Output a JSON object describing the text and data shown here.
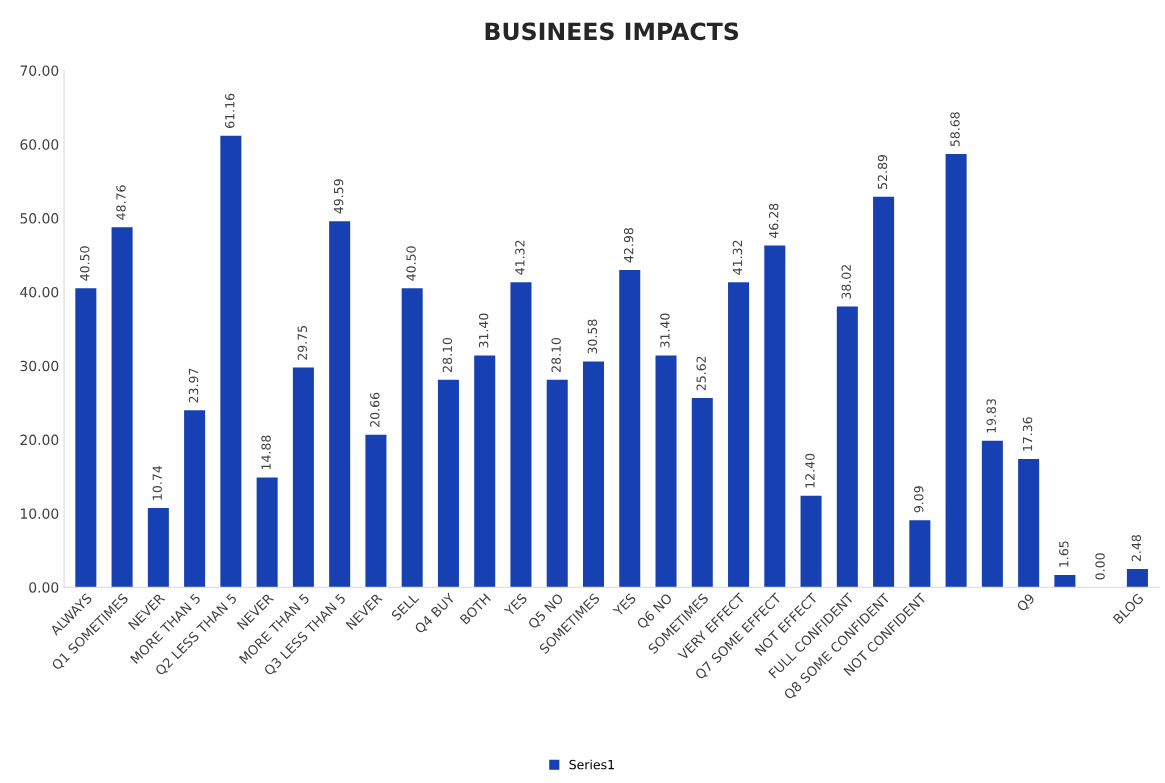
{
  "chart_data": {
    "type": "bar",
    "title": "BUSINEES IMPACTS",
    "categories": [
      "ALWAYS",
      "Q1 SOMETIMES",
      "NEVER",
      "MORE THAN 5",
      "Q2 LESS THAN 5",
      "NEVER",
      "MORE THAN 5",
      "Q3 LESS THAN 5",
      "NEVER",
      "SELL",
      "Q4 BUY",
      "BOTH",
      "YES",
      "Q5 NO",
      "SOMETIMES",
      "YES",
      "Q6 NO",
      "SOMETIMES",
      "VERY EFFECT",
      "Q7 SOME EFFECT",
      "NOT EFFECT",
      "FULL CONFIDENT",
      "Q8 SOME CONFIDENT",
      "NOT CONFIDENT",
      null,
      null,
      "Q9",
      null,
      null,
      "BLOG"
    ],
    "series": [
      {
        "name": "Series1",
        "color": "#1740b3",
        "values": [
          40.5,
          48.76,
          10.74,
          23.97,
          61.16,
          14.88,
          29.75,
          49.59,
          20.66,
          40.5,
          28.1,
          31.4,
          41.32,
          28.1,
          30.58,
          42.98,
          31.4,
          25.62,
          41.32,
          46.28,
          12.4,
          38.02,
          52.89,
          9.09,
          58.68,
          19.83,
          17.36,
          1.65,
          0.0,
          2.48
        ],
        "value_labels": [
          "40.50",
          "48.76",
          "10.74",
          "23.97",
          "61.16",
          "14.88",
          "29.75",
          "49.59",
          "20.66",
          "40.50",
          "28.10",
          "31.40",
          "41.32",
          "28.10",
          "30.58",
          "42.98",
          "31.40",
          "25.62",
          "41.32",
          "46.28",
          "12.40",
          "38.02",
          "52.89",
          "9.09",
          "58.68",
          "19.83",
          "17.36",
          "1.65",
          "0.00",
          "2.48"
        ]
      }
    ],
    "ylim": [
      0,
      70
    ],
    "yticks": [
      {
        "value": 0,
        "label": "0.00"
      },
      {
        "value": 10,
        "label": "10.00"
      },
      {
        "value": 20,
        "label": "20.00"
      },
      {
        "value": 30,
        "label": "30.00"
      },
      {
        "value": 40,
        "label": "40.00"
      },
      {
        "value": 50,
        "label": "50.00"
      },
      {
        "value": 60,
        "label": "60.00"
      },
      {
        "value": 70,
        "label": "70.00"
      }
    ],
    "grid": false,
    "legend": "bottom"
  }
}
